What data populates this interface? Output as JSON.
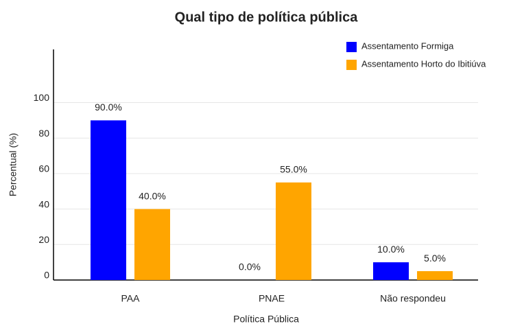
{
  "chart_data": {
    "type": "bar",
    "title": "Qual tipo de política pública",
    "xlabel": "Política Pública",
    "ylabel": "Percentual (%)",
    "categories": [
      "PAA",
      "PNAE",
      "Não respondeu"
    ],
    "series": [
      {
        "name": "Assentamento Formiga",
        "color": "#0000ff",
        "values": [
          90,
          0,
          10
        ],
        "value_labels": [
          "90.0%",
          "0.0%",
          "10.0%"
        ]
      },
      {
        "name": "Assentamento Horto do Ibitiúva",
        "color": "#ffa500",
        "values": [
          40,
          55,
          5
        ],
        "value_labels": [
          "40.0%",
          "55.0%",
          "5.0%"
        ]
      }
    ],
    "ylim": [
      0,
      130
    ],
    "yticks": [
      0,
      20,
      40,
      60,
      80,
      100
    ],
    "grid": true,
    "legend": "upper right"
  }
}
